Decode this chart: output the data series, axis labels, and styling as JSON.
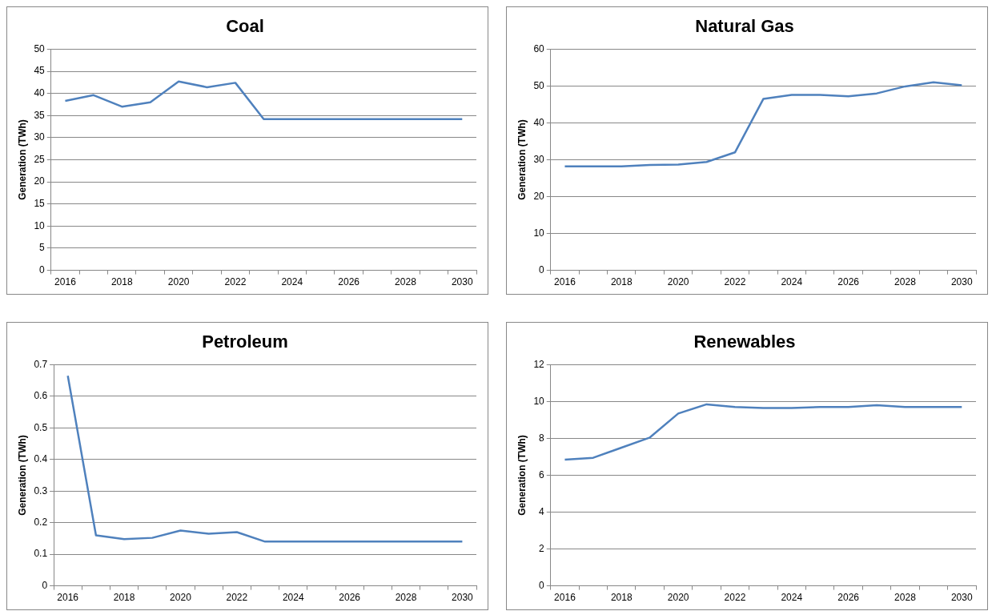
{
  "chart_data": [
    {
      "type": "line",
      "title": "Coal",
      "ylabel": "Generation (TWh)",
      "categories": [
        "2016",
        null,
        "2018",
        null,
        "2020",
        null,
        "2022",
        null,
        "2024",
        null,
        "2026",
        null,
        "2028",
        null,
        "2030"
      ],
      "color": "#4f81bd",
      "ylim": [
        0,
        50
      ],
      "yticks": [
        0,
        5,
        10,
        15,
        20,
        25,
        30,
        35,
        40,
        45,
        50
      ],
      "grid": "y",
      "values": [
        38.3,
        39.6,
        37.0,
        38.0,
        42.7,
        41.4,
        42.4,
        34.2,
        34.2,
        34.2,
        34.2,
        34.2,
        34.2,
        34.2,
        34.2
      ]
    },
    {
      "type": "line",
      "title": "Natural Gas",
      "ylabel": "Generation (TWh)",
      "categories": [
        "2016",
        null,
        "2018",
        null,
        "2020",
        null,
        "2022",
        null,
        "2024",
        null,
        "2026",
        null,
        "2028",
        null,
        "2030"
      ],
      "color": "#4f81bd",
      "ylim": [
        0,
        60
      ],
      "yticks": [
        0,
        10,
        20,
        30,
        40,
        50,
        60
      ],
      "grid": "y",
      "values": [
        28.2,
        28.2,
        28.2,
        28.6,
        28.7,
        29.4,
        32.0,
        46.5,
        47.6,
        47.6,
        47.2,
        48.0,
        49.9,
        51.0,
        50.2
      ]
    },
    {
      "type": "line",
      "title": "Petroleum",
      "ylabel": "Generation (TWh)",
      "categories": [
        "2016",
        null,
        "2018",
        null,
        "2020",
        null,
        "2022",
        null,
        "2024",
        null,
        "2026",
        null,
        "2028",
        null,
        "2030"
      ],
      "color": "#4f81bd",
      "ylim": [
        0,
        0.7
      ],
      "yticks": [
        0,
        0.1,
        0.2,
        0.3,
        0.4,
        0.5,
        0.6,
        0.7
      ],
      "grid": "y",
      "values": [
        0.665,
        0.16,
        0.148,
        0.152,
        0.175,
        0.165,
        0.17,
        0.14,
        0.14,
        0.14,
        0.14,
        0.14,
        0.14,
        0.14,
        0.14
      ]
    },
    {
      "type": "line",
      "title": "Renewables",
      "ylabel": "Generation (TWh)",
      "categories": [
        "2016",
        null,
        "2018",
        null,
        "2020",
        null,
        "2022",
        null,
        "2024",
        null,
        "2026",
        null,
        "2028",
        null,
        "2030"
      ],
      "color": "#4f81bd",
      "ylim": [
        0,
        12
      ],
      "yticks": [
        0,
        2,
        4,
        6,
        8,
        10,
        12
      ],
      "grid": "y",
      "values": [
        6.85,
        6.95,
        7.5,
        8.05,
        9.35,
        9.85,
        9.7,
        9.65,
        9.65,
        9.7,
        9.7,
        9.8,
        9.7,
        9.7,
        9.7
      ]
    }
  ]
}
